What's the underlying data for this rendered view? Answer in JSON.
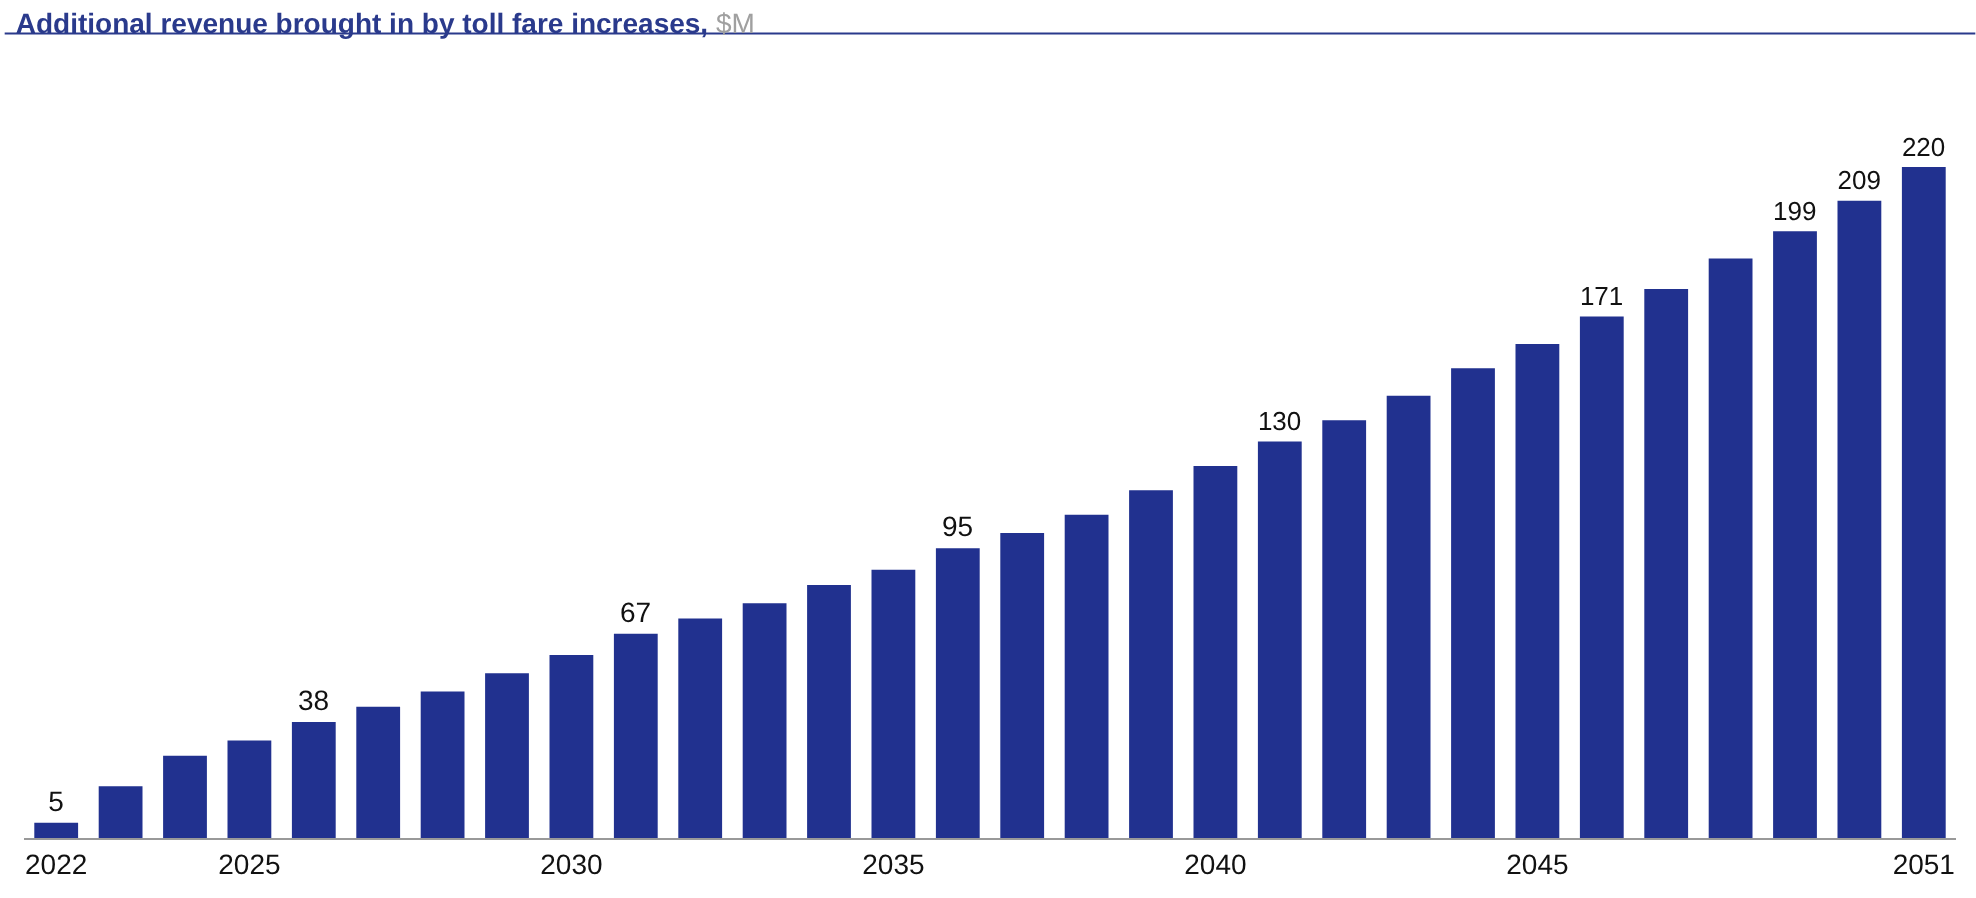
{
  "chart_data": {
    "type": "bar",
    "title": "Additional revenue brought in by toll fare increases,",
    "subtitle": "$M",
    "x": [
      2022,
      2023,
      2024,
      2025,
      2026,
      2027,
      2028,
      2029,
      2030,
      2031,
      2032,
      2033,
      2034,
      2035,
      2036,
      2037,
      2038,
      2039,
      2040,
      2041,
      2042,
      2043,
      2044,
      2045,
      2046,
      2047,
      2048,
      2049,
      2050,
      2051
    ],
    "values": [
      5,
      17,
      27,
      32,
      38,
      43,
      48,
      54,
      60,
      67,
      72,
      77,
      83,
      88,
      95,
      100,
      106,
      114,
      122,
      130,
      137,
      145,
      154,
      162,
      171,
      180,
      190,
      199,
      209,
      220
    ],
    "value_labels": [
      "5",
      null,
      null,
      null,
      "38",
      null,
      null,
      null,
      null,
      "67",
      null,
      null,
      null,
      null,
      "95",
      null,
      null,
      null,
      null,
      "130",
      null,
      null,
      null,
      null,
      "171",
      null,
      null,
      "199",
      "209",
      "220"
    ],
    "color": "#21318f",
    "xlim": [
      2021.5,
      2051.5
    ],
    "xticks": [
      2022,
      2025,
      2030,
      2035,
      2040,
      2045,
      2051
    ],
    "tick_labels": "x",
    "grid": false,
    "legend": false
  }
}
